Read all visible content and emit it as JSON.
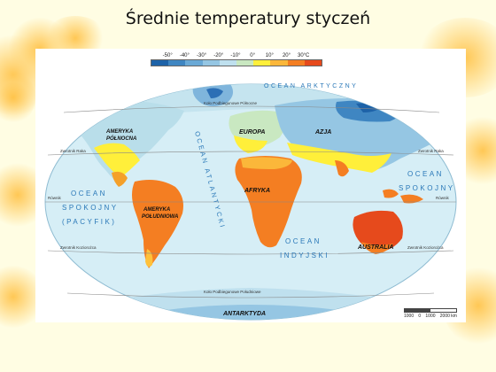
{
  "title": "Średnie temperatury styczeń",
  "legend": {
    "labels": [
      "-50°",
      "-40°",
      "-30°",
      "-20°",
      "-10°",
      "0°",
      "10°",
      "20°",
      "30°C"
    ],
    "colors": [
      "#1d62a8",
      "#3f86c2",
      "#6aa9d6",
      "#95c6e3",
      "#bfe0ee",
      "#c9e8c1",
      "#ffef3a",
      "#fbb73a",
      "#f47e22",
      "#e64a1c"
    ]
  },
  "continents": {
    "north_america": "AMERYKA PÓŁNOCNA",
    "south_america": "AMERYKA POŁUDNIOWA",
    "europe": "EUROPA",
    "asia": "AZJA",
    "africa": "AFRYKA",
    "australia": "AUSTRALIA",
    "antarctica": "ANTARKTYDA"
  },
  "oceans": {
    "arctic": "OCEAN ARKTYCZNY",
    "atlantic": "OCEAN ATLANTYCKI",
    "indian_1": "OCEAN",
    "indian_2": "INDYJSKI",
    "pacific_left_1": "OCEAN",
    "pacific_left_2": "SPOKOJNY",
    "pacific_left_3": "(PACYFIK)",
    "pacific_right_1": "OCEAN",
    "pacific_right_2": "SPOKOJNY"
  },
  "lines": {
    "polar_north": "Koło Podbiegunowe Północne",
    "tropic_cancer_left": "Zwrotnik Raka",
    "tropic_cancer_right": "Zwrotnik Raka",
    "equator_left": "Równik",
    "equator_right": "Równik",
    "tropic_capricorn_left": "Zwrotnik Koziorożca",
    "tropic_capricorn_right": "Zwrotnik Koziorożca",
    "polar_south": "Koło Podbiegunowe Południowe"
  },
  "scale": {
    "labels": [
      "1000",
      "0",
      "1000",
      "2000 km"
    ]
  }
}
